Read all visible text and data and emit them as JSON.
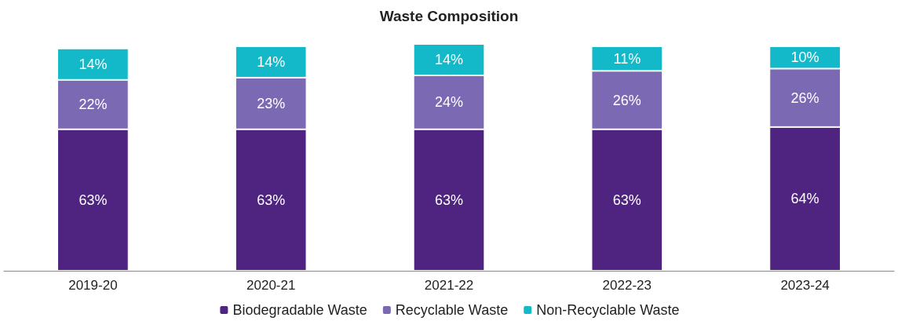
{
  "chart_data": {
    "type": "bar",
    "title": "Waste Composition",
    "stacked": true,
    "legend": "bottom",
    "categories": [
      "2019-20",
      "2020-21",
      "2021-22",
      "2022-23",
      "2023-24"
    ],
    "series": [
      {
        "name": "Biodegradable Waste",
        "color": "#4f2380",
        "values": [
          63,
          63,
          63,
          63,
          64
        ],
        "value_labels": [
          "63%",
          "63%",
          "63%",
          "63%",
          "64%"
        ]
      },
      {
        "name": "Recyclable Waste",
        "color": "#7b69b4",
        "values": [
          22,
          23,
          24,
          26,
          26
        ],
        "value_labels": [
          "22%",
          "23%",
          "24%",
          "26%",
          "26%"
        ]
      },
      {
        "name": "Non-Recyclable Waste",
        "color": "#14b9c9",
        "values": [
          14,
          14,
          14,
          11,
          10
        ],
        "value_labels": [
          "14%",
          "14%",
          "14%",
          "11%",
          "10%"
        ]
      }
    ]
  }
}
